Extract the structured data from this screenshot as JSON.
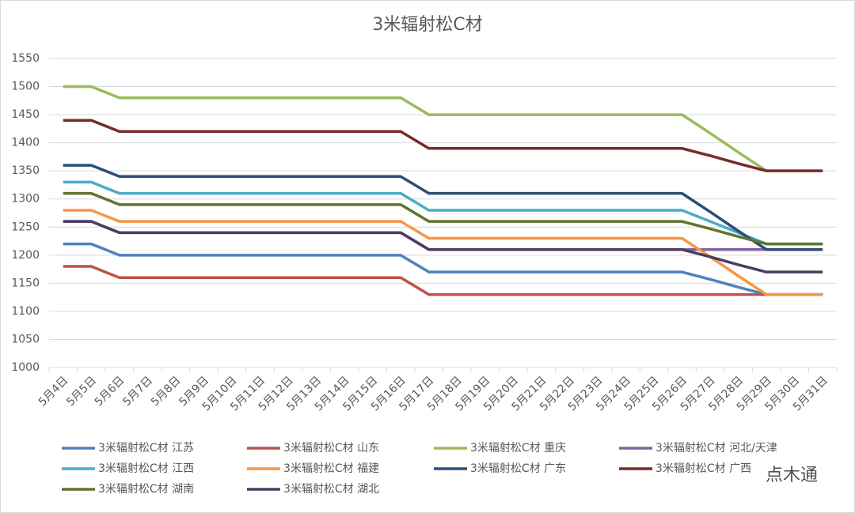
{
  "chart_data": {
    "type": "line",
    "title": "3米辐射松C材",
    "categories": [
      "5月4日",
      "5月5日",
      "5月6日",
      "5月7日",
      "5月8日",
      "5月9日",
      "5月10日",
      "5月11日",
      "5月12日",
      "5月13日",
      "5月14日",
      "5月15日",
      "5月16日",
      "5月17日",
      "5月18日",
      "5月19日",
      "5月20日",
      "5月21日",
      "5月22日",
      "5月23日",
      "5月24日",
      "5月25日",
      "5月26日",
      "5月27日",
      "5月28日",
      "5月29日",
      "5月30日",
      "5月31日"
    ],
    "ylim": [
      1000,
      1550
    ],
    "yticks": [
      1000,
      1050,
      1100,
      1150,
      1200,
      1250,
      1300,
      1350,
      1400,
      1450,
      1500,
      1550
    ],
    "grid": true,
    "series": [
      {
        "name": "3米辐射松C材 江苏",
        "color": "#4f81bd",
        "values": [
          1220,
          1220,
          1200,
          1200,
          1200,
          1200,
          1200,
          1200,
          1200,
          1200,
          1200,
          1200,
          1200,
          1170,
          1170,
          1170,
          1170,
          1170,
          1170,
          1170,
          1170,
          1170,
          1170,
          1157,
          1143,
          1130,
          1130,
          1130
        ]
      },
      {
        "name": "3米辐射松C材 山东",
        "color": "#c0504d",
        "values": [
          1180,
          1180,
          1160,
          1160,
          1160,
          1160,
          1160,
          1160,
          1160,
          1160,
          1160,
          1160,
          1160,
          1130,
          1130,
          1130,
          1130,
          1130,
          1130,
          1130,
          1130,
          1130,
          1130,
          1130,
          1130,
          1130,
          1130,
          1130
        ]
      },
      {
        "name": "3米辐射松C材 重庆",
        "color": "#9bbb59",
        "values": [
          1500,
          1500,
          1480,
          1480,
          1480,
          1480,
          1480,
          1480,
          1480,
          1480,
          1480,
          1480,
          1480,
          1450,
          1450,
          1450,
          1450,
          1450,
          1450,
          1450,
          1450,
          1450,
          1450,
          1417,
          1383,
          1350,
          1350,
          1350
        ]
      },
      {
        "name": "3米辐射松C材 河北/天津",
        "color": "#8064a2",
        "values": [
          1260,
          1260,
          1240,
          1240,
          1240,
          1240,
          1240,
          1240,
          1240,
          1240,
          1240,
          1240,
          1240,
          1210,
          1210,
          1210,
          1210,
          1210,
          1210,
          1210,
          1210,
          1210,
          1210,
          1210,
          1210,
          1210,
          1210,
          1210
        ]
      },
      {
        "name": "3米辐射松C材 江西",
        "color": "#4bacc6",
        "values": [
          1330,
          1330,
          1310,
          1310,
          1310,
          1310,
          1310,
          1310,
          1310,
          1310,
          1310,
          1310,
          1310,
          1280,
          1280,
          1280,
          1280,
          1280,
          1280,
          1280,
          1280,
          1280,
          1280,
          1260,
          1240,
          1220,
          1220,
          1220
        ]
      },
      {
        "name": "3米辐射松C材 福建",
        "color": "#f79646",
        "values": [
          1280,
          1280,
          1260,
          1260,
          1260,
          1260,
          1260,
          1260,
          1260,
          1260,
          1260,
          1260,
          1260,
          1230,
          1230,
          1230,
          1230,
          1230,
          1230,
          1230,
          1230,
          1230,
          1230,
          1197,
          1163,
          1130,
          1130,
          1130
        ]
      },
      {
        "name": "3米辐射松C材 广东",
        "color": "#2c4d75",
        "values": [
          1360,
          1360,
          1340,
          1340,
          1340,
          1340,
          1340,
          1340,
          1340,
          1340,
          1340,
          1340,
          1340,
          1310,
          1310,
          1310,
          1310,
          1310,
          1310,
          1310,
          1310,
          1310,
          1310,
          1277,
          1243,
          1210,
          1210,
          1210
        ]
      },
      {
        "name": "3米辐射松C材 广西",
        "color": "#772c2a",
        "values": [
          1440,
          1440,
          1420,
          1420,
          1420,
          1420,
          1420,
          1420,
          1420,
          1420,
          1420,
          1420,
          1420,
          1390,
          1390,
          1390,
          1390,
          1390,
          1390,
          1390,
          1390,
          1390,
          1390,
          1377,
          1363,
          1350,
          1350,
          1350
        ]
      },
      {
        "name": "3米辐射松C材 湖南",
        "color": "#5f7530",
        "values": [
          1310,
          1310,
          1290,
          1290,
          1290,
          1290,
          1290,
          1290,
          1290,
          1290,
          1290,
          1290,
          1290,
          1260,
          1260,
          1260,
          1260,
          1260,
          1260,
          1260,
          1260,
          1260,
          1260,
          1247,
          1233,
          1220,
          1220,
          1220
        ]
      },
      {
        "name": "3米辐射松C材 湖北",
        "color": "#4d3b62",
        "values": [
          1260,
          1260,
          1240,
          1240,
          1240,
          1240,
          1240,
          1240,
          1240,
          1240,
          1240,
          1240,
          1240,
          1210,
          1210,
          1210,
          1210,
          1210,
          1210,
          1210,
          1210,
          1210,
          1210,
          1197,
          1183,
          1170,
          1170,
          1170
        ]
      }
    ],
    "watermark": "点木通"
  }
}
